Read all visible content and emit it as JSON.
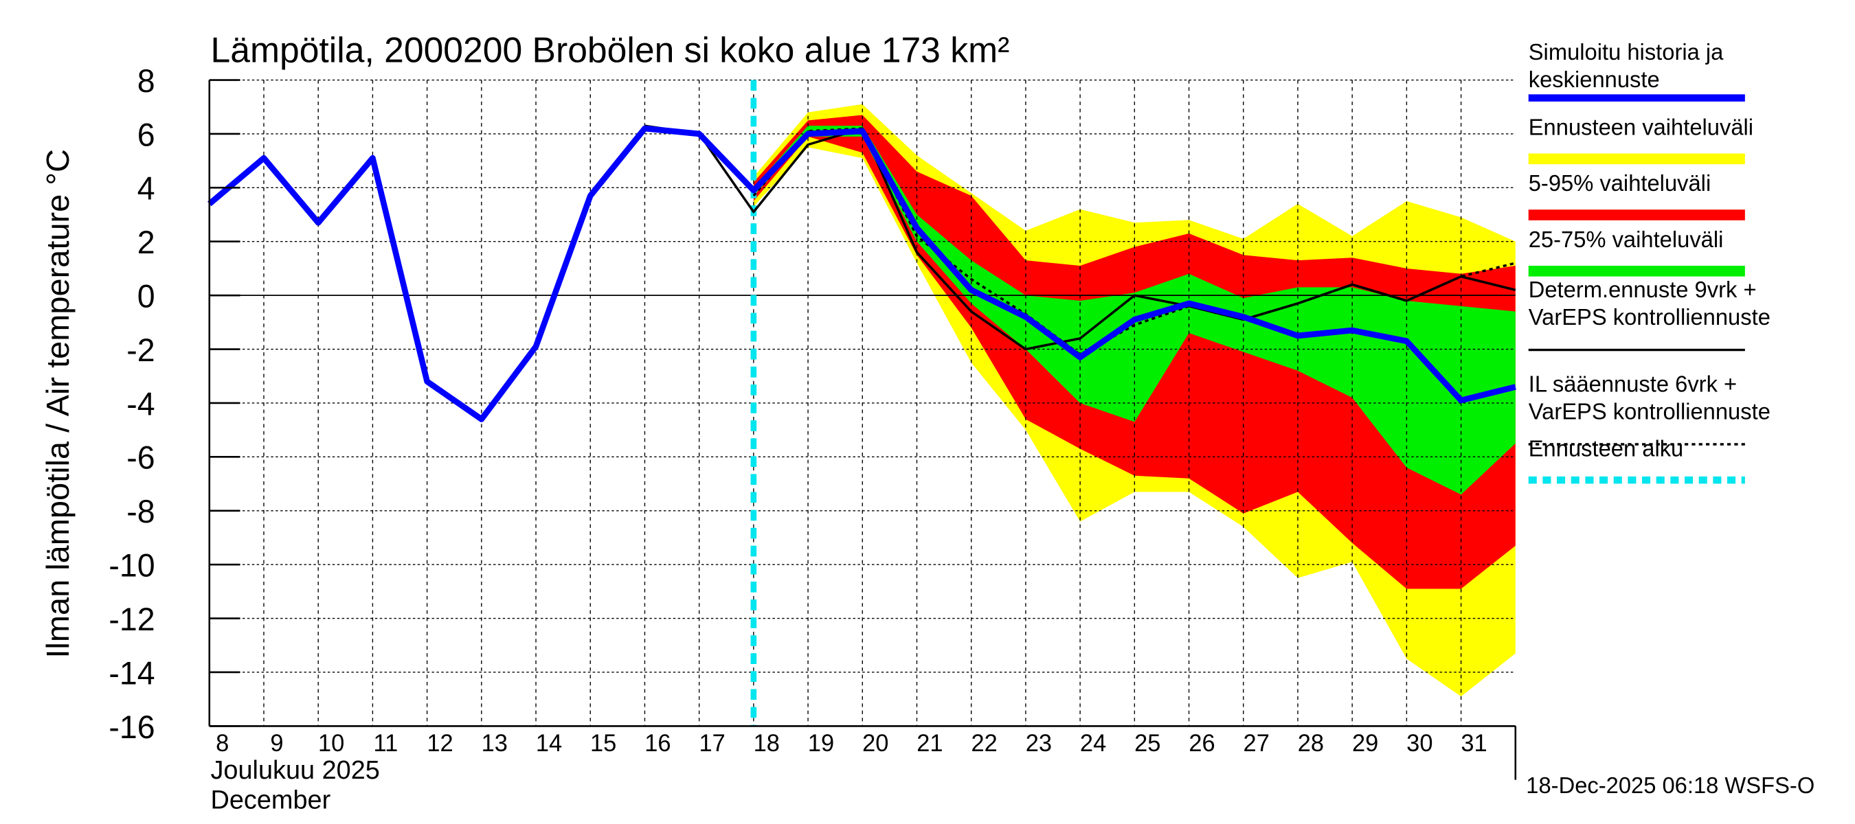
{
  "chart_data": {
    "type": "area",
    "title": "Lämpötila, 2000200 Brobölen si koko alue 173 km²",
    "ylabel": "Ilman lämpötila / Air temperature    °C",
    "xlabel_line1": "Joulukuu  2025",
    "xlabel_line2": "December",
    "footer": "18-Dec-2025 06:18 WSFS-O",
    "ylim": [
      -16,
      8
    ],
    "xlim": [
      8,
      32
    ],
    "yticks": [
      8,
      6,
      4,
      2,
      0,
      -2,
      -4,
      -6,
      -8,
      -10,
      -12,
      -14,
      -16
    ],
    "xticks": [
      8,
      9,
      10,
      11,
      12,
      13,
      14,
      15,
      16,
      17,
      18,
      19,
      20,
      21,
      22,
      23,
      24,
      25,
      26,
      27,
      28,
      29,
      30,
      31
    ],
    "forecast_start": 18,
    "grid": true,
    "legend_position": "right",
    "legend": [
      {
        "label1": "Simuloitu historia ja",
        "label2": "keskiennuste",
        "color": "#0000ff",
        "style": "thick"
      },
      {
        "label1": "Ennusteen vaihteluväli",
        "label2": "",
        "color": "#ffff00",
        "style": "band"
      },
      {
        "label1": "5-95% vaihteluväli",
        "label2": "",
        "color": "#ff0000",
        "style": "band"
      },
      {
        "label1": "25-75% vaihteluväli",
        "label2": "",
        "color": "#00ee00",
        "style": "band"
      },
      {
        "label1": "Determ.ennuste 9vrk +",
        "label2": "VarEPS kontrolliennuste",
        "color": "#000000",
        "style": "line"
      },
      {
        "label1": "IL sääennuste 6vrk  +",
        "label2": "  VarEPS kontrolliennuste",
        "color": "#000000",
        "style": "dotted"
      },
      {
        "label1": "Ennusteen alku",
        "label2": "",
        "color": "#00e5ee",
        "style": "dashed"
      }
    ],
    "band_x": [
      18,
      19,
      20,
      21,
      22,
      23,
      24,
      25,
      26,
      27,
      28,
      29,
      30,
      31,
      32
    ],
    "bands": [
      {
        "name": "Ennusteen vaihteluväli",
        "color": "#ffff00",
        "upper": [
          4.4,
          6.8,
          7.1,
          5.2,
          3.8,
          2.4,
          3.2,
          2.7,
          2.8,
          2.1,
          3.4,
          2.2,
          3.5,
          2.9,
          2.0
        ],
        "lower": [
          3.3,
          5.5,
          5.1,
          1.2,
          -2.5,
          -5.0,
          -8.4,
          -7.3,
          -7.3,
          -8.6,
          -10.5,
          -9.9,
          -13.5,
          -14.9,
          -13.3
        ]
      },
      {
        "name": "5-95% vaihteluväli",
        "color": "#ff0000",
        "upper": [
          4.2,
          6.5,
          6.7,
          4.6,
          3.7,
          1.3,
          1.1,
          1.8,
          2.3,
          1.5,
          1.3,
          1.4,
          1.0,
          0.8,
          1.1
        ],
        "lower": [
          3.5,
          5.9,
          5.3,
          1.5,
          -1.2,
          -4.6,
          -5.7,
          -6.7,
          -6.8,
          -8.1,
          -7.3,
          -9.2,
          -10.9,
          -10.9,
          -9.3
        ]
      },
      {
        "name": "25-75% vaihteluväli",
        "color": "#00ee00",
        "upper": [
          4.0,
          6.3,
          6.3,
          3.0,
          1.3,
          0.0,
          -0.2,
          0.1,
          0.8,
          -0.1,
          0.3,
          0.3,
          -0.2,
          -0.4,
          -0.6
        ],
        "lower": [
          3.7,
          5.9,
          5.9,
          2.0,
          -0.3,
          -2.0,
          -4.0,
          -4.7,
          -1.4,
          -2.1,
          -2.8,
          -3.8,
          -6.4,
          -7.4,
          -5.5
        ]
      }
    ],
    "series": [
      {
        "name": "Determ.ennuste",
        "color": "#000000",
        "style": "line",
        "x": [
          16,
          17,
          18,
          19,
          20,
          21,
          22,
          23,
          24,
          25,
          26,
          27,
          28,
          29,
          30,
          31,
          32
        ],
        "y": [
          6.3,
          6.0,
          3.1,
          5.6,
          6.2,
          1.6,
          -0.6,
          -2.0,
          -1.6,
          0.0,
          -0.4,
          -0.9,
          -0.3,
          0.4,
          -0.2,
          0.7,
          0.2
        ]
      },
      {
        "name": "IL sääennuste",
        "color": "#000000",
        "style": "dotted",
        "x": [
          18,
          19,
          20,
          21,
          22,
          23,
          24,
          25,
          26,
          27,
          28,
          29,
          30,
          31,
          32
        ],
        "y": [
          3.7,
          6.1,
          6.2,
          2.2,
          0.6,
          -0.7,
          -2.2,
          -1.1,
          -0.4,
          -0.9,
          -0.3,
          0.4,
          -0.2,
          0.7,
          1.2
        ]
      },
      {
        "name": "Simuloitu historia ja keskiennuste",
        "color": "#0000ff",
        "style": "thick",
        "x": [
          8,
          9,
          10,
          11,
          12,
          13,
          14,
          15,
          16,
          17,
          18,
          19,
          20,
          21,
          22,
          23,
          24,
          25,
          26,
          27,
          28,
          29,
          30,
          31,
          32
        ],
        "y": [
          3.4,
          5.1,
          2.7,
          5.1,
          -3.2,
          -4.6,
          -1.9,
          3.7,
          6.2,
          6.0,
          3.9,
          6.0,
          6.1,
          2.5,
          0.2,
          -0.8,
          -2.3,
          -0.9,
          -0.3,
          -0.8,
          -1.5,
          -1.3,
          -1.7,
          -3.9,
          -3.4
        ]
      }
    ]
  }
}
